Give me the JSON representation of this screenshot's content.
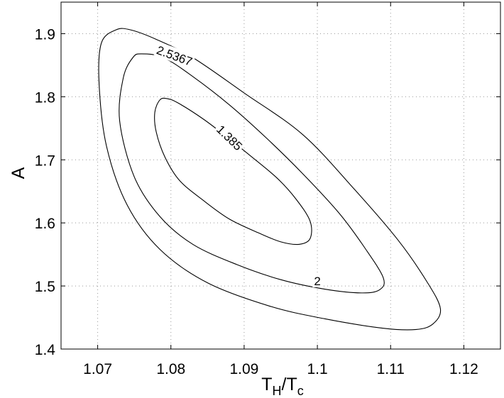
{
  "chart_data": {
    "type": "contour",
    "title": "",
    "xlabel_main": "T",
    "xlabel_sub1": "H",
    "xlabel_sep": "/T",
    "xlabel_sub2": "c",
    "ylabel": "A",
    "xlim": [
      1.065,
      1.125
    ],
    "ylim": [
      1.4,
      1.95
    ],
    "xticks": [
      1.07,
      1.08,
      1.09,
      1.1,
      1.11,
      1.12
    ],
    "xtick_labels": [
      "1.07",
      "1.08",
      "1.09",
      "1.1",
      "1.11",
      "1.12"
    ],
    "yticks": [
      1.4,
      1.5,
      1.6,
      1.7,
      1.8,
      1.9
    ],
    "ytick_labels": [
      "1.4",
      "1.5",
      "1.6",
      "1.7",
      "1.8",
      "1.9"
    ],
    "grid": true,
    "contours": [
      {
        "level_label": "1.385",
        "label_at": [
          1.088,
          1.735
        ],
        "label_angle": 44,
        "points": [
          [
            1.0785,
            1.795
          ],
          [
            1.0795,
            1.797
          ],
          [
            1.081,
            1.79
          ],
          [
            1.0845,
            1.764
          ],
          [
            1.088,
            1.733
          ],
          [
            1.091,
            1.705
          ],
          [
            1.0945,
            1.671
          ],
          [
            1.097,
            1.639
          ],
          [
            1.099,
            1.603
          ],
          [
            1.099,
            1.575
          ],
          [
            1.0975,
            1.566
          ],
          [
            1.095,
            1.57
          ],
          [
            1.092,
            1.584
          ],
          [
            1.088,
            1.606
          ],
          [
            1.0845,
            1.635
          ],
          [
            1.0812,
            1.667
          ],
          [
            1.0792,
            1.704
          ],
          [
            1.078,
            1.744
          ],
          [
            1.0778,
            1.775
          ],
          [
            1.0785,
            1.795
          ]
        ]
      },
      {
        "level_label": "2",
        "label_at": [
          1.1,
          1.508
        ],
        "label_angle": 0,
        "points": [
          [
            1.0748,
            1.862
          ],
          [
            1.076,
            1.868
          ],
          [
            1.079,
            1.862
          ],
          [
            1.083,
            1.832
          ],
          [
            1.088,
            1.787
          ],
          [
            1.093,
            1.735
          ],
          [
            1.098,
            1.678
          ],
          [
            1.103,
            1.615
          ],
          [
            1.1065,
            1.56
          ],
          [
            1.109,
            1.513
          ],
          [
            1.1085,
            1.494
          ],
          [
            1.106,
            1.489
          ],
          [
            1.101,
            1.495
          ],
          [
            1.095,
            1.51
          ],
          [
            1.089,
            1.534
          ],
          [
            1.083,
            1.566
          ],
          [
            1.0785,
            1.61
          ],
          [
            1.075,
            1.673
          ],
          [
            1.073,
            1.762
          ],
          [
            1.0735,
            1.83
          ],
          [
            1.0748,
            1.862
          ]
        ]
      },
      {
        "level_label": "2.5367",
        "label_at": [
          1.0805,
          1.865
        ],
        "label_angle": 20,
        "points": [
          [
            1.0705,
            1.885
          ],
          [
            1.0725,
            1.906
          ],
          [
            1.0745,
            1.906
          ],
          [
            1.078,
            1.891
          ],
          [
            1.083,
            1.862
          ],
          [
            1.09,
            1.806
          ],
          [
            1.098,
            1.74
          ],
          [
            1.105,
            1.654
          ],
          [
            1.111,
            1.573
          ],
          [
            1.115,
            1.506
          ],
          [
            1.1168,
            1.464
          ],
          [
            1.1158,
            1.44
          ],
          [
            1.1135,
            1.431
          ],
          [
            1.109,
            1.433
          ],
          [
            1.101,
            1.448
          ],
          [
            1.0935,
            1.468
          ],
          [
            1.085,
            1.505
          ],
          [
            1.0785,
            1.558
          ],
          [
            1.074,
            1.629
          ],
          [
            1.0712,
            1.722
          ],
          [
            1.0702,
            1.82
          ],
          [
            1.0705,
            1.885
          ]
        ]
      }
    ]
  }
}
